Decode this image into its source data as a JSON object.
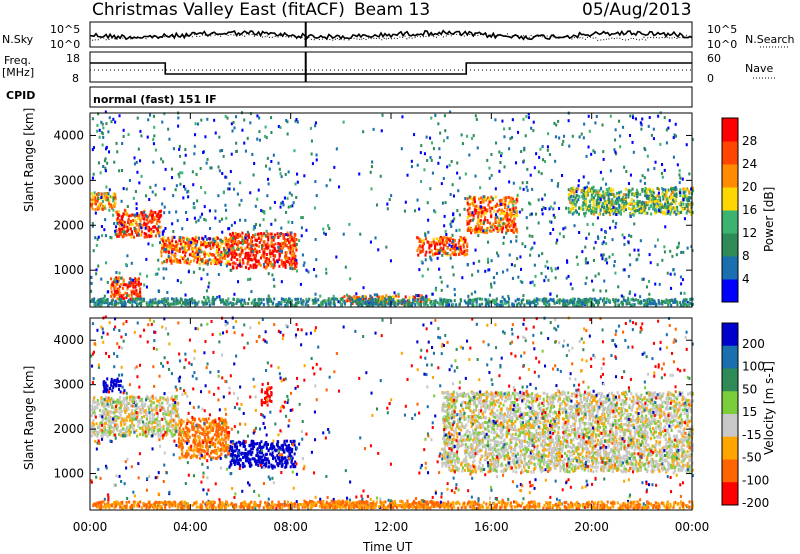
{
  "header": {
    "title": "Christmas Valley East (fitACF)",
    "beam": "Beam 13",
    "date": "05/Aug/2013"
  },
  "noise_panel": {
    "left_label": "N.Sky",
    "right_label": "N.Search",
    "left_ticks": [
      "10^5",
      "10^0"
    ],
    "right_ticks": [
      "10^5",
      "10^0"
    ]
  },
  "freq_panel": {
    "left_label_1": "Freq.",
    "left_label_2": "[MHz]",
    "right_label": "Nave",
    "left_ticks": [
      "18",
      "8"
    ],
    "right_ticks": [
      "60",
      "0"
    ]
  },
  "cpid_panel": {
    "label": "CPID",
    "text": "normal (fast) 151 IF"
  },
  "x_axis": {
    "label": "Time UT",
    "ticks": [
      "00:00",
      "04:00",
      "08:00",
      "12:00",
      "16:00",
      "20:00",
      "00:00"
    ]
  },
  "chart_data": [
    {
      "type": "heatmap",
      "panel": "power",
      "xlabel": "Time UT",
      "ylabel": "Slant Range [km]",
      "xlim": [
        0,
        24
      ],
      "ylim": [
        180,
        4500
      ],
      "y_ticks": [
        1000,
        2000,
        3000,
        4000
      ],
      "colorbar_label": "Power [dB]",
      "colorbar_ticks": [
        "4",
        "8",
        "12",
        "16",
        "20",
        "24",
        "28"
      ],
      "colorbar_colors": [
        "#0000ff",
        "#1a6faf",
        "#2e8b57",
        "#3cb371",
        "#ffd700",
        "#ff8c00",
        "#ff4500",
        "#ff0000"
      ],
      "features": [
        {
          "t0": 0.0,
          "t1": 1.0,
          "r0": 2300,
          "r1": 2700,
          "level": 22
        },
        {
          "t0": 1.0,
          "t1": 2.8,
          "r0": 1700,
          "r1": 2300,
          "level": 26
        },
        {
          "t0": 2.8,
          "t1": 5.5,
          "r0": 1100,
          "r1": 1700,
          "level": 24
        },
        {
          "t0": 5.5,
          "t1": 8.2,
          "r0": 1000,
          "r1": 1800,
          "level": 28
        },
        {
          "t0": 0.8,
          "t1": 2.0,
          "r0": 300,
          "r1": 800,
          "level": 28
        },
        {
          "t0": 10.0,
          "t1": 13.5,
          "r0": 200,
          "r1": 400,
          "level": 24
        },
        {
          "t0": 13.0,
          "t1": 15.0,
          "r0": 1300,
          "r1": 1700,
          "level": 26
        },
        {
          "t0": 15.0,
          "t1": 17.0,
          "r0": 1800,
          "r1": 2600,
          "level": 24
        },
        {
          "t0": 19.0,
          "t1": 24.0,
          "r0": 2200,
          "r1": 2800,
          "level": 14
        }
      ]
    },
    {
      "type": "heatmap",
      "panel": "velocity",
      "xlabel": "Time UT",
      "ylabel": "Slant Range [km]",
      "xlim": [
        0,
        24
      ],
      "ylim": [
        180,
        4500
      ],
      "y_ticks": [
        1000,
        2000,
        3000,
        4000
      ],
      "colorbar_label": "Velocity [m s-1]",
      "colorbar_ticks": [
        "200",
        "100",
        "50",
        "15",
        "-15",
        "-50",
        "-100",
        "-200"
      ],
      "colorbar_colors": [
        "#0000cd",
        "#1a6faf",
        "#2e8b57",
        "#7ccd3c",
        "#c8c8c8",
        "#ffa500",
        "#ff6400",
        "#ff0000"
      ],
      "features": [
        {
          "t0": 0.0,
          "t1": 3.5,
          "r0": 1800,
          "r1": 2700,
          "vel": 0
        },
        {
          "t0": 5.5,
          "t1": 8.2,
          "r0": 1100,
          "r1": 1700,
          "vel": 220
        },
        {
          "t0": 3.5,
          "t1": 5.5,
          "r0": 1300,
          "r1": 2200,
          "vel": -60
        },
        {
          "t0": 6.8,
          "t1": 7.2,
          "r0": 2500,
          "r1": 2900,
          "vel": -200
        },
        {
          "t0": 8.5,
          "t1": 14.0,
          "r0": 200,
          "r1": 350,
          "vel": -60
        },
        {
          "t0": 14.0,
          "t1": 24.0,
          "r0": 1000,
          "r1": 2800,
          "vel": 0
        },
        {
          "t0": 0.5,
          "t1": 1.2,
          "r0": 2800,
          "r1": 3100,
          "vel": 200
        }
      ]
    }
  ]
}
